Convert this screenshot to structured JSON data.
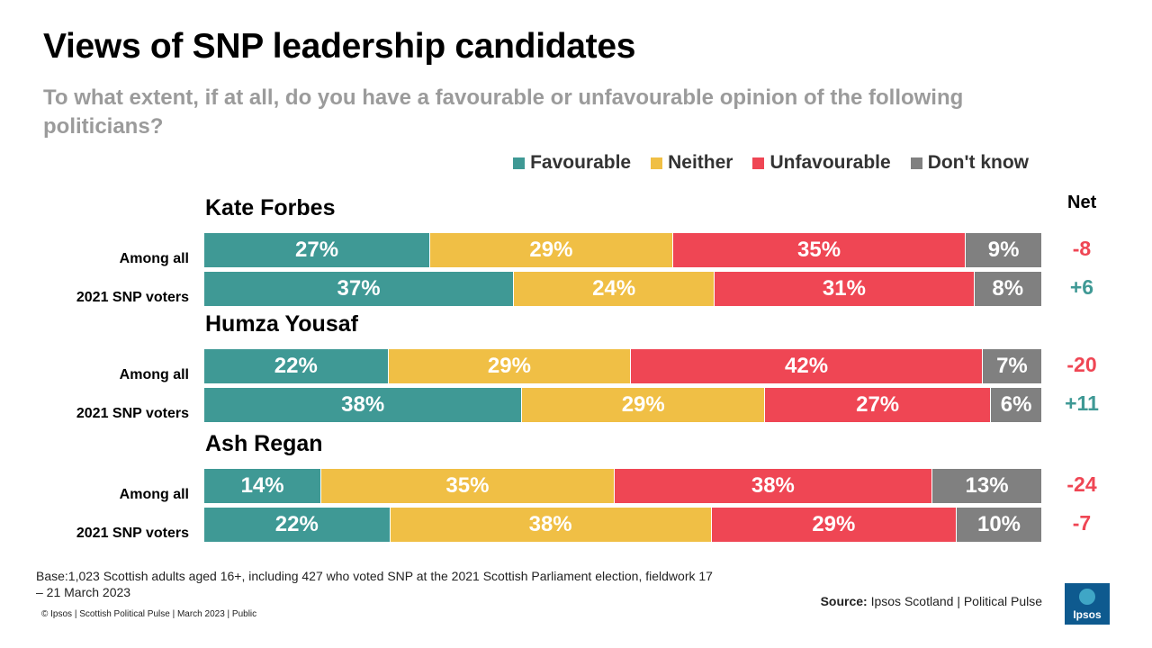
{
  "title": "Views of SNP leadership candidates",
  "subtitle": "To what extent, if at all, do you have a favourable or unfavourable opinion of the following politicians?",
  "net_header": "Net",
  "colors": {
    "favourable": "#3f9995",
    "neither": "#f0bf45",
    "unfavourable": "#ef4654",
    "dont_know": "#808080",
    "net_negative": "#ef4654",
    "net_positive": "#3f9995"
  },
  "chart_data": {
    "type": "bar",
    "stacked": true,
    "orientation": "horizontal",
    "unit": "%",
    "legend": [
      "Favourable",
      "Neither",
      "Unfavourable",
      "Don't know"
    ],
    "legend_position": "top-right",
    "groups": [
      {
        "name": "Kate Forbes",
        "rows": [
          {
            "label": "Among all",
            "values": [
              27,
              29,
              35,
              9
            ],
            "net": "-8"
          },
          {
            "label": "2021 SNP voters",
            "values": [
              37,
              24,
              31,
              8
            ],
            "net": "+6"
          }
        ]
      },
      {
        "name": "Humza Yousaf",
        "rows": [
          {
            "label": "Among all",
            "values": [
              22,
              29,
              42,
              7
            ],
            "net": "-20"
          },
          {
            "label": "2021 SNP voters",
            "values": [
              38,
              29,
              27,
              6
            ],
            "net": "+11"
          }
        ]
      },
      {
        "name": "Ash Regan",
        "rows": [
          {
            "label": "Among all",
            "values": [
              14,
              35,
              38,
              13
            ],
            "net": "-24"
          },
          {
            "label": "2021 SNP voters",
            "values": [
              22,
              38,
              29,
              10
            ],
            "net": "-7"
          }
        ]
      }
    ]
  },
  "footnote": "Base:1,023 Scottish adults aged 16+, including 427 who voted SNP at the 2021 Scottish Parliament election, fieldwork 17 – 21 March 2023",
  "source_label": "Source:",
  "source_text": "Ipsos Scotland | Political Pulse",
  "copyright": "© Ipsos | Scottish Political Pulse | March 2023 | Public",
  "logo_text": "Ipsos"
}
